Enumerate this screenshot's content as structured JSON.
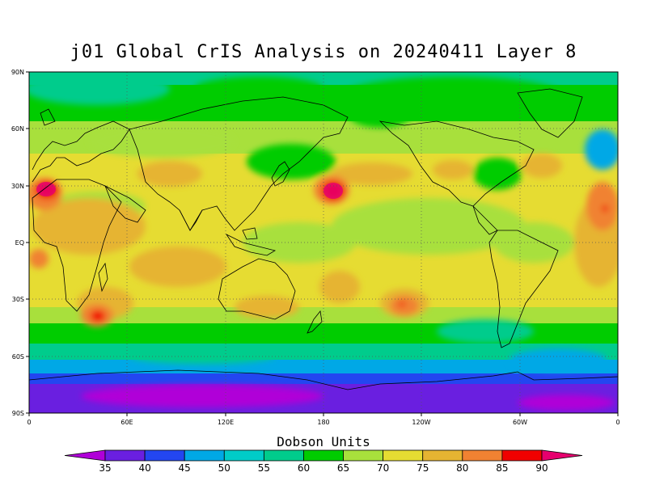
{
  "title": "j01 Global CrIS Analysis on 20240411 Layer 8",
  "lat_ticks": [
    "90N",
    "60N",
    "30N",
    "EQ",
    "30S",
    "60S",
    "90S"
  ],
  "lon_ticks": [
    "0",
    "60E",
    "120E",
    "180",
    "120W",
    "60W",
    "0"
  ],
  "colorbar": {
    "units_label": "Dobson Units",
    "levels": [
      "35",
      "40",
      "45",
      "50",
      "55",
      "60",
      "65",
      "70",
      "75",
      "80",
      "85",
      "90"
    ],
    "colors": [
      "#b000d8",
      "#6a1fe0",
      "#2346f0",
      "#00a8e6",
      "#00ccc8",
      "#00cc8c",
      "#00cc00",
      "#a8e03c",
      "#e6dc32",
      "#e6b432",
      "#f08232",
      "#f00000",
      "#e6006e"
    ]
  }
}
